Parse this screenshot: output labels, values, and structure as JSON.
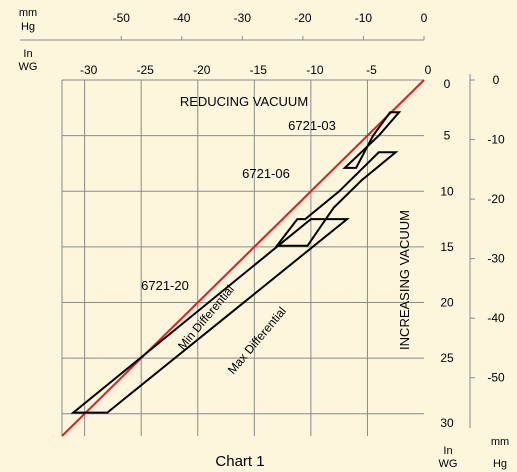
{
  "chart_data": {
    "type": "line",
    "title": "Chart 1",
    "top_mmhg_axis": {
      "unit_line1": "mm",
      "unit_line2": "Hg",
      "ticks": [
        -50,
        -40,
        -30,
        -20,
        -10,
        0
      ],
      "range": [
        -56,
        0
      ]
    },
    "top_inwg_axis": {
      "unit_line1": "In",
      "unit_line2": "WG",
      "ticks": [
        -30,
        -25,
        -20,
        -15,
        -10,
        -5,
        0
      ],
      "range": [
        -32,
        0
      ]
    },
    "right_inwg_axis": {
      "unit_line1": "In",
      "unit_line2": "WG",
      "ticks": [
        0,
        5,
        10,
        15,
        20,
        25,
        30
      ],
      "range": [
        0,
        32
      ]
    },
    "right_mmhg_axis": {
      "unit_line1": "mm",
      "unit_line2": "Hg",
      "ticks": [
        0,
        -10,
        -20,
        -30,
        -40,
        -50
      ],
      "range": [
        0,
        -56
      ]
    },
    "grid": true,
    "reference_line": {
      "color": "#e02020",
      "points": [
        [
          0,
          0
        ],
        [
          -32,
          32
        ]
      ]
    },
    "labels": {
      "reducing": "REDUCING VACUUM",
      "increasing": "INCREASING VACUUM",
      "min_diff": "Min Differential",
      "max_diff": "Max Differential"
    },
    "series": [
      {
        "name": "6721-03",
        "polygon": [
          [
            -2.2,
            2.9
          ],
          [
            -3.0,
            2.9
          ],
          [
            -4.5,
            5.0
          ],
          [
            -6.0,
            7.9
          ],
          [
            -7.0,
            7.9
          ],
          [
            -4.0,
            5.0
          ]
        ]
      },
      {
        "name": "6721-06",
        "polygon": [
          [
            -2.5,
            6.5
          ],
          [
            -4.0,
            6.5
          ],
          [
            -7.5,
            10.0
          ],
          [
            -10.5,
            12.5
          ],
          [
            -11.2,
            12.5
          ],
          [
            -13.0,
            14.9
          ],
          [
            -10.3,
            14.9
          ],
          [
            -8.0,
            11.5
          ],
          [
            -5.5,
            9.0
          ]
        ]
      },
      {
        "name": "6721-20",
        "polygon": [
          [
            -6.8,
            12.5
          ],
          [
            -10.0,
            12.5
          ],
          [
            -31.0,
            29.9
          ],
          [
            -28.0,
            29.9
          ]
        ]
      }
    ]
  }
}
